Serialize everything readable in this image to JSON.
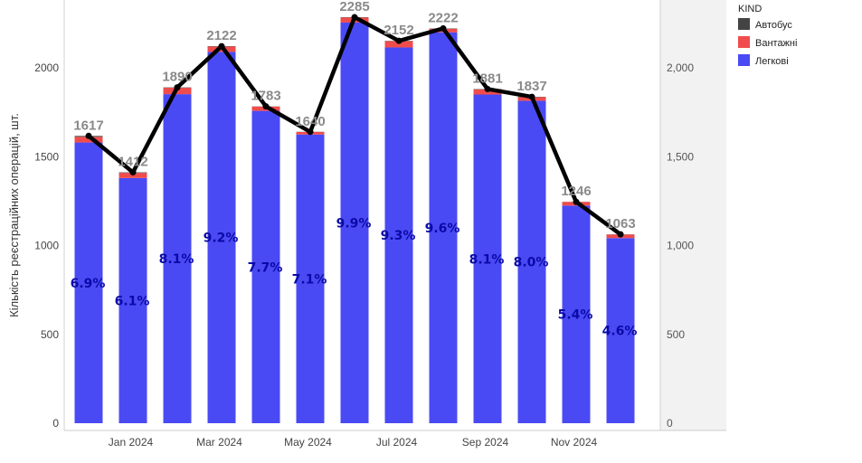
{
  "chart_data": {
    "type": "bar",
    "stacked": true,
    "x": [
      "2023-12",
      "2024-01",
      "2024-02",
      "2024-03",
      "2024-04",
      "2024-05",
      "2024-06",
      "2024-07",
      "2024-08",
      "2024-09",
      "2024-10",
      "2024-11",
      "2024-12"
    ],
    "x_tick_labels": [
      {
        "index": 1,
        "label": "Jan 2024"
      },
      {
        "index": 3,
        "label": "Mar 2024"
      },
      {
        "index": 5,
        "label": "May 2024"
      },
      {
        "index": 7,
        "label": "Jul 2024"
      },
      {
        "index": 9,
        "label": "Sep 2024"
      },
      {
        "index": 11,
        "label": "Nov 2024"
      }
    ],
    "legend_title": "KIND",
    "series": [
      {
        "name": "Легкові",
        "color": "#4a4af5",
        "values": [
          1580,
          1380,
          1852,
          2090,
          1758,
          1625,
          2255,
          2115,
          2200,
          1850,
          1815,
          1225,
          1042
        ]
      },
      {
        "name": "Вантажні",
        "color": "#f04c4c",
        "values": [
          32,
          29,
          36,
          30,
          24,
          14,
          28,
          35,
          20,
          29,
          20,
          20,
          20
        ]
      },
      {
        "name": "Автобус",
        "color": "#444444",
        "values": [
          5,
          3,
          2,
          2,
          1,
          1,
          2,
          2,
          2,
          2,
          2,
          1,
          1
        ]
      }
    ],
    "legend_order": [
      "Автобус",
      "Вантажні",
      "Легкові"
    ],
    "totals": [
      1617,
      1412,
      1890,
      2122,
      1783,
      1640,
      2285,
      2152,
      2222,
      1881,
      1837,
      1246,
      1063
    ],
    "total_labels": [
      "1617",
      "1412",
      "1890",
      "2122",
      "1783",
      "1640",
      "2285",
      "2152",
      "2222",
      "1881",
      "1837",
      "1246",
      "1063"
    ],
    "percent_labels": [
      "6.9%",
      "6.1%",
      "8.1%",
      "9.2%",
      "7.7%",
      "7.1%",
      "9.9%",
      "9.3%",
      "9.6%",
      "8.1%",
      "8.0%",
      "5.4%",
      "4.6%"
    ],
    "line": {
      "values": [
        1617,
        1412,
        1890,
        2122,
        1783,
        1640,
        2285,
        2152,
        2222,
        1881,
        1837,
        1246,
        1063
      ],
      "color": "#000000"
    },
    "ylabel": "Кількість реєстраційних операцій, шт.",
    "ylim": [
      0,
      2340
    ],
    "y_ticks_left": [
      {
        "value": 0,
        "label": "0"
      },
      {
        "value": 500,
        "label": "500"
      },
      {
        "value": 1000,
        "label": "1000"
      },
      {
        "value": 1500,
        "label": "1500"
      },
      {
        "value": 2000,
        "label": "2000"
      }
    ],
    "y_ticks_right": [
      {
        "value": 0,
        "label": "0"
      },
      {
        "value": 500,
        "label": "500"
      },
      {
        "value": 1000,
        "label": "1,000"
      },
      {
        "value": 1500,
        "label": "1,500"
      },
      {
        "value": 2000,
        "label": "2,000"
      }
    ],
    "grid": false,
    "legend_position": "top-right"
  }
}
